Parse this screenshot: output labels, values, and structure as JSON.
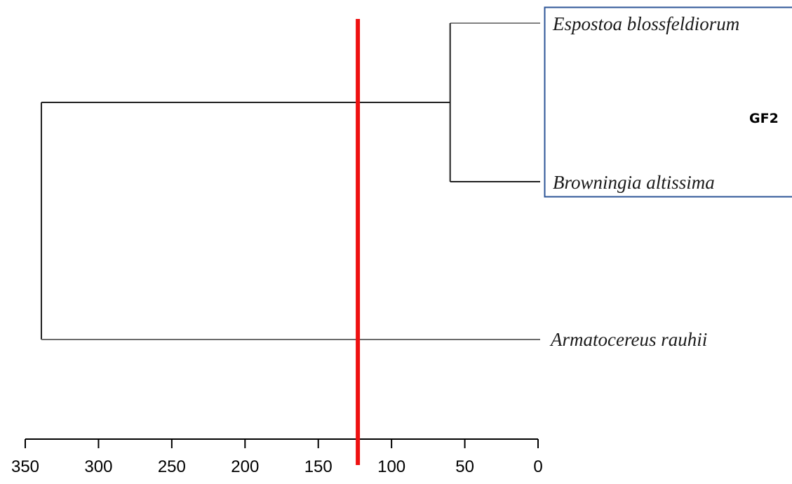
{
  "tree": {
    "leaves": [
      {
        "name": "Espostoa blossfeldiorum",
        "node_height": 0
      },
      {
        "name": "Browningia altissima",
        "node_height": 0
      },
      {
        "name": "Armatocereus rauhii",
        "node_height": 0
      }
    ],
    "merges": [
      {
        "children": [
          "Espostoa blossfeldiorum",
          "Browningia altissima"
        ],
        "height": 60
      },
      {
        "children": [
          "merge-1",
          "Armatocereus rauhii"
        ],
        "height": 339
      }
    ],
    "cut_height": 123,
    "cut_line_color": "#ee1111",
    "branch_color": "#1f1f1f",
    "group": {
      "label": "GF2",
      "members": [
        "Espostoa blossfeldiorum",
        "Browningia altissima"
      ],
      "box_color": "#2e5597"
    }
  },
  "axis": {
    "range": [
      350,
      0
    ],
    "ticks": [
      350,
      300,
      250,
      200,
      150,
      100,
      50,
      0
    ],
    "tick_labels": [
      "350",
      "300",
      "250",
      "200",
      "150",
      "100",
      "50",
      "0"
    ]
  }
}
